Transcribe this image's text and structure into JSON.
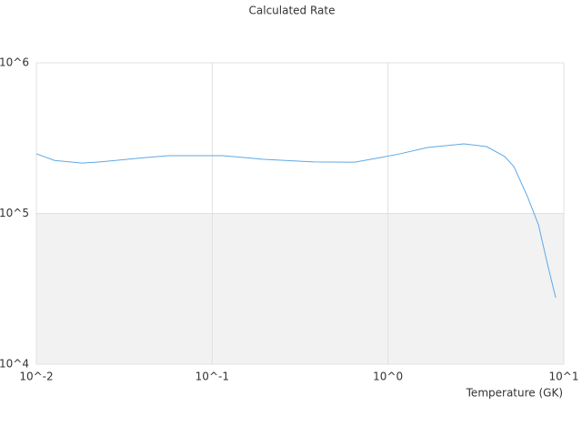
{
  "chart_data": {
    "type": "line",
    "title": "Calculated Rate",
    "x_label": "Temperature (GK)",
    "x": [
      0.01,
      0.0127,
      0.0182,
      0.023,
      0.037,
      0.056,
      0.115,
      0.196,
      0.378,
      0.647,
      0.925,
      1.17,
      1.68,
      2.7,
      3.64,
      4.61,
      5.2,
      6.22,
      7.18,
      8.08,
      8.99
    ],
    "values": [
      249000,
      225000,
      216000,
      220000,
      232000,
      242000,
      242000,
      229000,
      220000,
      219000,
      236000,
      249000,
      274000,
      290000,
      278000,
      239000,
      205000,
      129000,
      84000,
      46000,
      27600
    ],
    "color": "#5ea8e6",
    "xscale": "log",
    "yscale": "log",
    "xlim": [
      0.01,
      10
    ],
    "ylim": [
      10000,
      1000000
    ],
    "xticks": [
      {
        "value": 0.01,
        "label": "10^-2"
      },
      {
        "value": 0.1,
        "label": "10^-1"
      },
      {
        "value": 1,
        "label": "10^0"
      },
      {
        "value": 10,
        "label": "10^1"
      }
    ],
    "yticks": [
      {
        "value": 10000,
        "label": "10^4"
      },
      {
        "value": 100000,
        "label": "10^5"
      },
      {
        "value": 1000000,
        "label": "10^6"
      }
    ],
    "band_color": "#f2f2f2"
  }
}
